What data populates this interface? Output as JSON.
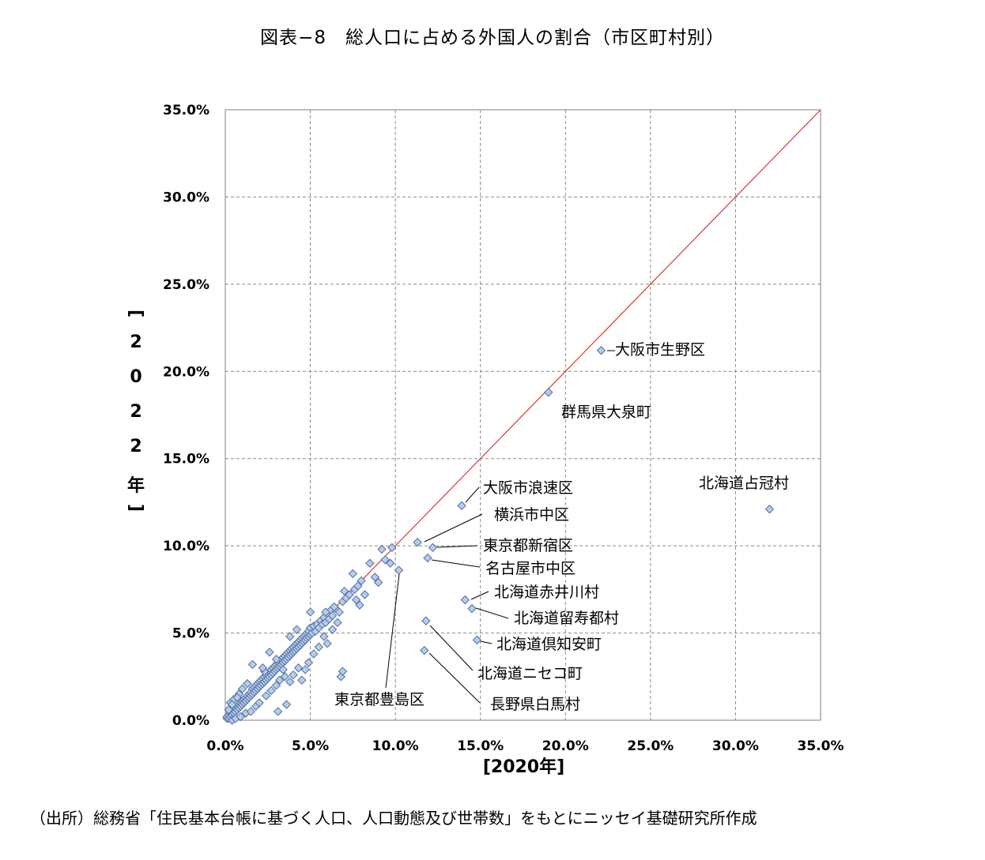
{
  "title": "図表−8　総人口に占める外国人の割合（市区町村別）",
  "source": "（出所）総務省「住民基本台帳に基づく人口、人口動態及び世帯数」をもとにニッセイ基礎研究所作成",
  "colors": {
    "marker_fill": "#b8cce4",
    "marker_stroke": "#4f6fa8",
    "diagonal": "#e03030",
    "grid": "#8a8a8a"
  },
  "chart_data": {
    "type": "scatter",
    "xlabel": "[2020年]",
    "ylabel": "[2022年]",
    "xlim": [
      0,
      35
    ],
    "ylim": [
      0,
      35
    ],
    "x_ticks": [
      "0.0%",
      "5.0%",
      "10.0%",
      "15.0%",
      "20.0%",
      "25.0%",
      "30.0%",
      "35.0%"
    ],
    "y_ticks": [
      "0.0%",
      "5.0%",
      "10.0%",
      "15.0%",
      "20.0%",
      "25.0%",
      "30.0%",
      "35.0%"
    ],
    "grid": true,
    "reference_line": "y = x",
    "labeled_points": [
      {
        "name": "大阪市生野区",
        "x": 22.1,
        "y": 21.2
      },
      {
        "name": "群馬県大泉町",
        "x": 19.0,
        "y": 18.8
      },
      {
        "name": "北海道占冠村",
        "x": 32.0,
        "y": 12.1
      },
      {
        "name": "大阪市浪速区",
        "x": 13.9,
        "y": 12.3
      },
      {
        "name": "横浜市中区",
        "x": 11.3,
        "y": 10.2
      },
      {
        "name": "東京都新宿区",
        "x": 12.2,
        "y": 9.9
      },
      {
        "name": "名古屋市中区",
        "x": 11.9,
        "y": 9.3
      },
      {
        "name": "北海道赤井川村",
        "x": 14.1,
        "y": 6.9
      },
      {
        "name": "北海道留寿都村",
        "x": 14.5,
        "y": 6.4
      },
      {
        "name": "北海道倶知安町",
        "x": 14.8,
        "y": 4.6
      },
      {
        "name": "北海道ニセコ町",
        "x": 11.8,
        "y": 5.7
      },
      {
        "name": "長野県白馬村",
        "x": 11.7,
        "y": 4.0
      },
      {
        "name": "東京都豊島区",
        "x": 10.2,
        "y": 8.6
      }
    ],
    "points": [
      [
        0.1,
        0.1
      ],
      [
        0.1,
        0.2
      ],
      [
        0.2,
        0.1
      ],
      [
        0.2,
        0.3
      ],
      [
        0.3,
        0.2
      ],
      [
        0.3,
        0.4
      ],
      [
        0.4,
        0.3
      ],
      [
        0.4,
        0.5
      ],
      [
        0.5,
        0.4
      ],
      [
        0.5,
        0.6
      ],
      [
        0.6,
        0.5
      ],
      [
        0.6,
        0.7
      ],
      [
        0.7,
        0.6
      ],
      [
        0.7,
        0.8
      ],
      [
        0.8,
        0.7
      ],
      [
        0.8,
        0.9
      ],
      [
        0.9,
        0.8
      ],
      [
        0.9,
        1.0
      ],
      [
        1.0,
        0.9
      ],
      [
        1.0,
        1.1
      ],
      [
        1.1,
        1.0
      ],
      [
        1.1,
        1.2
      ],
      [
        1.2,
        1.1
      ],
      [
        1.2,
        1.3
      ],
      [
        1.3,
        1.2
      ],
      [
        1.3,
        1.4
      ],
      [
        1.4,
        1.3
      ],
      [
        1.4,
        1.5
      ],
      [
        1.5,
        1.4
      ],
      [
        1.5,
        1.6
      ],
      [
        1.6,
        1.5
      ],
      [
        1.6,
        1.8
      ],
      [
        1.7,
        1.6
      ],
      [
        1.7,
        1.9
      ],
      [
        1.8,
        1.7
      ],
      [
        1.8,
        2.0
      ],
      [
        1.9,
        1.8
      ],
      [
        1.9,
        2.1
      ],
      [
        2.0,
        1.9
      ],
      [
        2.0,
        2.2
      ],
      [
        2.1,
        2.0
      ],
      [
        2.1,
        2.3
      ],
      [
        2.2,
        2.1
      ],
      [
        2.2,
        2.4
      ],
      [
        2.3,
        2.2
      ],
      [
        2.3,
        2.5
      ],
      [
        2.4,
        2.3
      ],
      [
        2.4,
        2.6
      ],
      [
        2.5,
        2.4
      ],
      [
        2.5,
        2.7
      ],
      [
        2.6,
        2.5
      ],
      [
        2.6,
        2.8
      ],
      [
        2.7,
        2.6
      ],
      [
        2.7,
        2.9
      ],
      [
        2.8,
        2.7
      ],
      [
        2.8,
        3.0
      ],
      [
        2.9,
        2.8
      ],
      [
        2.9,
        3.1
      ],
      [
        3.0,
        2.9
      ],
      [
        3.0,
        3.2
      ],
      [
        3.1,
        3.0
      ],
      [
        3.1,
        3.3
      ],
      [
        3.2,
        3.1
      ],
      [
        3.2,
        3.4
      ],
      [
        3.3,
        3.2
      ],
      [
        3.3,
        3.5
      ],
      [
        3.4,
        3.3
      ],
      [
        3.4,
        3.6
      ],
      [
        3.5,
        3.4
      ],
      [
        3.5,
        3.7
      ],
      [
        3.6,
        3.5
      ],
      [
        3.6,
        3.8
      ],
      [
        3.7,
        3.6
      ],
      [
        3.7,
        3.9
      ],
      [
        3.8,
        3.7
      ],
      [
        3.8,
        4.0
      ],
      [
        3.9,
        3.8
      ],
      [
        3.9,
        4.1
      ],
      [
        4.0,
        3.9
      ],
      [
        4.0,
        4.2
      ],
      [
        4.1,
        4.0
      ],
      [
        4.1,
        4.3
      ],
      [
        4.2,
        4.1
      ],
      [
        4.2,
        4.4
      ],
      [
        4.3,
        4.2
      ],
      [
        4.3,
        4.5
      ],
      [
        4.4,
        4.3
      ],
      [
        4.4,
        4.6
      ],
      [
        4.5,
        4.4
      ],
      [
        4.5,
        4.7
      ],
      [
        4.6,
        4.5
      ],
      [
        4.6,
        4.8
      ],
      [
        4.7,
        4.6
      ],
      [
        4.7,
        4.9
      ],
      [
        4.8,
        4.7
      ],
      [
        4.8,
        5.0
      ],
      [
        4.9,
        4.8
      ],
      [
        4.9,
        5.1
      ],
      [
        5.0,
        4.9
      ],
      [
        5.0,
        5.3
      ],
      [
        5.1,
        5.0
      ],
      [
        5.2,
        5.4
      ],
      [
        5.3,
        5.1
      ],
      [
        5.4,
        5.5
      ],
      [
        5.5,
        5.3
      ],
      [
        5.6,
        5.7
      ],
      [
        5.7,
        5.5
      ],
      [
        5.8,
        5.9
      ],
      [
        5.9,
        5.6
      ],
      [
        6.0,
        6.1
      ],
      [
        6.1,
        5.8
      ],
      [
        6.2,
        6.3
      ],
      [
        6.3,
        6.0
      ],
      [
        6.5,
        6.4
      ],
      [
        6.7,
        6.2
      ],
      [
        6.9,
        6.8
      ],
      [
        7.0,
        7.4
      ],
      [
        7.1,
        7.0
      ],
      [
        7.3,
        7.2
      ],
      [
        7.5,
        8.4
      ],
      [
        7.6,
        7.5
      ],
      [
        7.8,
        7.7
      ],
      [
        8.0,
        8.0
      ],
      [
        8.2,
        7.2
      ],
      [
        8.5,
        9.0
      ],
      [
        8.8,
        8.2
      ],
      [
        9.0,
        7.9
      ],
      [
        9.2,
        9.8
      ],
      [
        9.4,
        9.2
      ],
      [
        9.7,
        9.0
      ],
      [
        9.8,
        9.9
      ],
      [
        0.3,
        1.0
      ],
      [
        0.5,
        1.2
      ],
      [
        0.8,
        1.5
      ],
      [
        1.0,
        1.8
      ],
      [
        1.6,
        3.2
      ],
      [
        2.3,
        2.8
      ],
      [
        2.6,
        3.9
      ],
      [
        3.0,
        3.5
      ],
      [
        3.4,
        2.9
      ],
      [
        0.4,
        0.0
      ],
      [
        0.6,
        0.1
      ],
      [
        0.9,
        0.2
      ],
      [
        1.2,
        0.4
      ],
      [
        1.5,
        0.5
      ],
      [
        1.8,
        0.8
      ],
      [
        2.0,
        1.0
      ],
      [
        2.4,
        1.4
      ],
      [
        2.7,
        1.7
      ],
      [
        3.0,
        2.0
      ],
      [
        3.2,
        2.3
      ],
      [
        3.5,
        2.5
      ],
      [
        3.8,
        2.2
      ],
      [
        4.0,
        2.6
      ],
      [
        4.3,
        3.0
      ],
      [
        4.5,
        2.3
      ],
      [
        4.7,
        2.9
      ],
      [
        4.9,
        3.3
      ],
      [
        5.2,
        3.8
      ],
      [
        5.5,
        4.2
      ],
      [
        5.8,
        4.8
      ],
      [
        6.0,
        4.4
      ],
      [
        6.3,
        5.2
      ],
      [
        6.6,
        5.6
      ],
      [
        3.1,
        0.5
      ],
      [
        3.6,
        0.9
      ],
      [
        6.8,
        2.5
      ],
      [
        6.9,
        2.8
      ],
      [
        0.2,
        0.6
      ],
      [
        0.4,
        0.9
      ],
      [
        5.0,
        6.2
      ],
      [
        4.2,
        5.2
      ],
      [
        3.8,
        4.8
      ],
      [
        2.2,
        3.0
      ],
      [
        1.3,
        2.1
      ],
      [
        0.7,
        1.3
      ],
      [
        7.9,
        6.6
      ],
      [
        7.7,
        6.9
      ],
      [
        6.4,
        6.5
      ],
      [
        5.9,
        6.2
      ]
    ]
  }
}
